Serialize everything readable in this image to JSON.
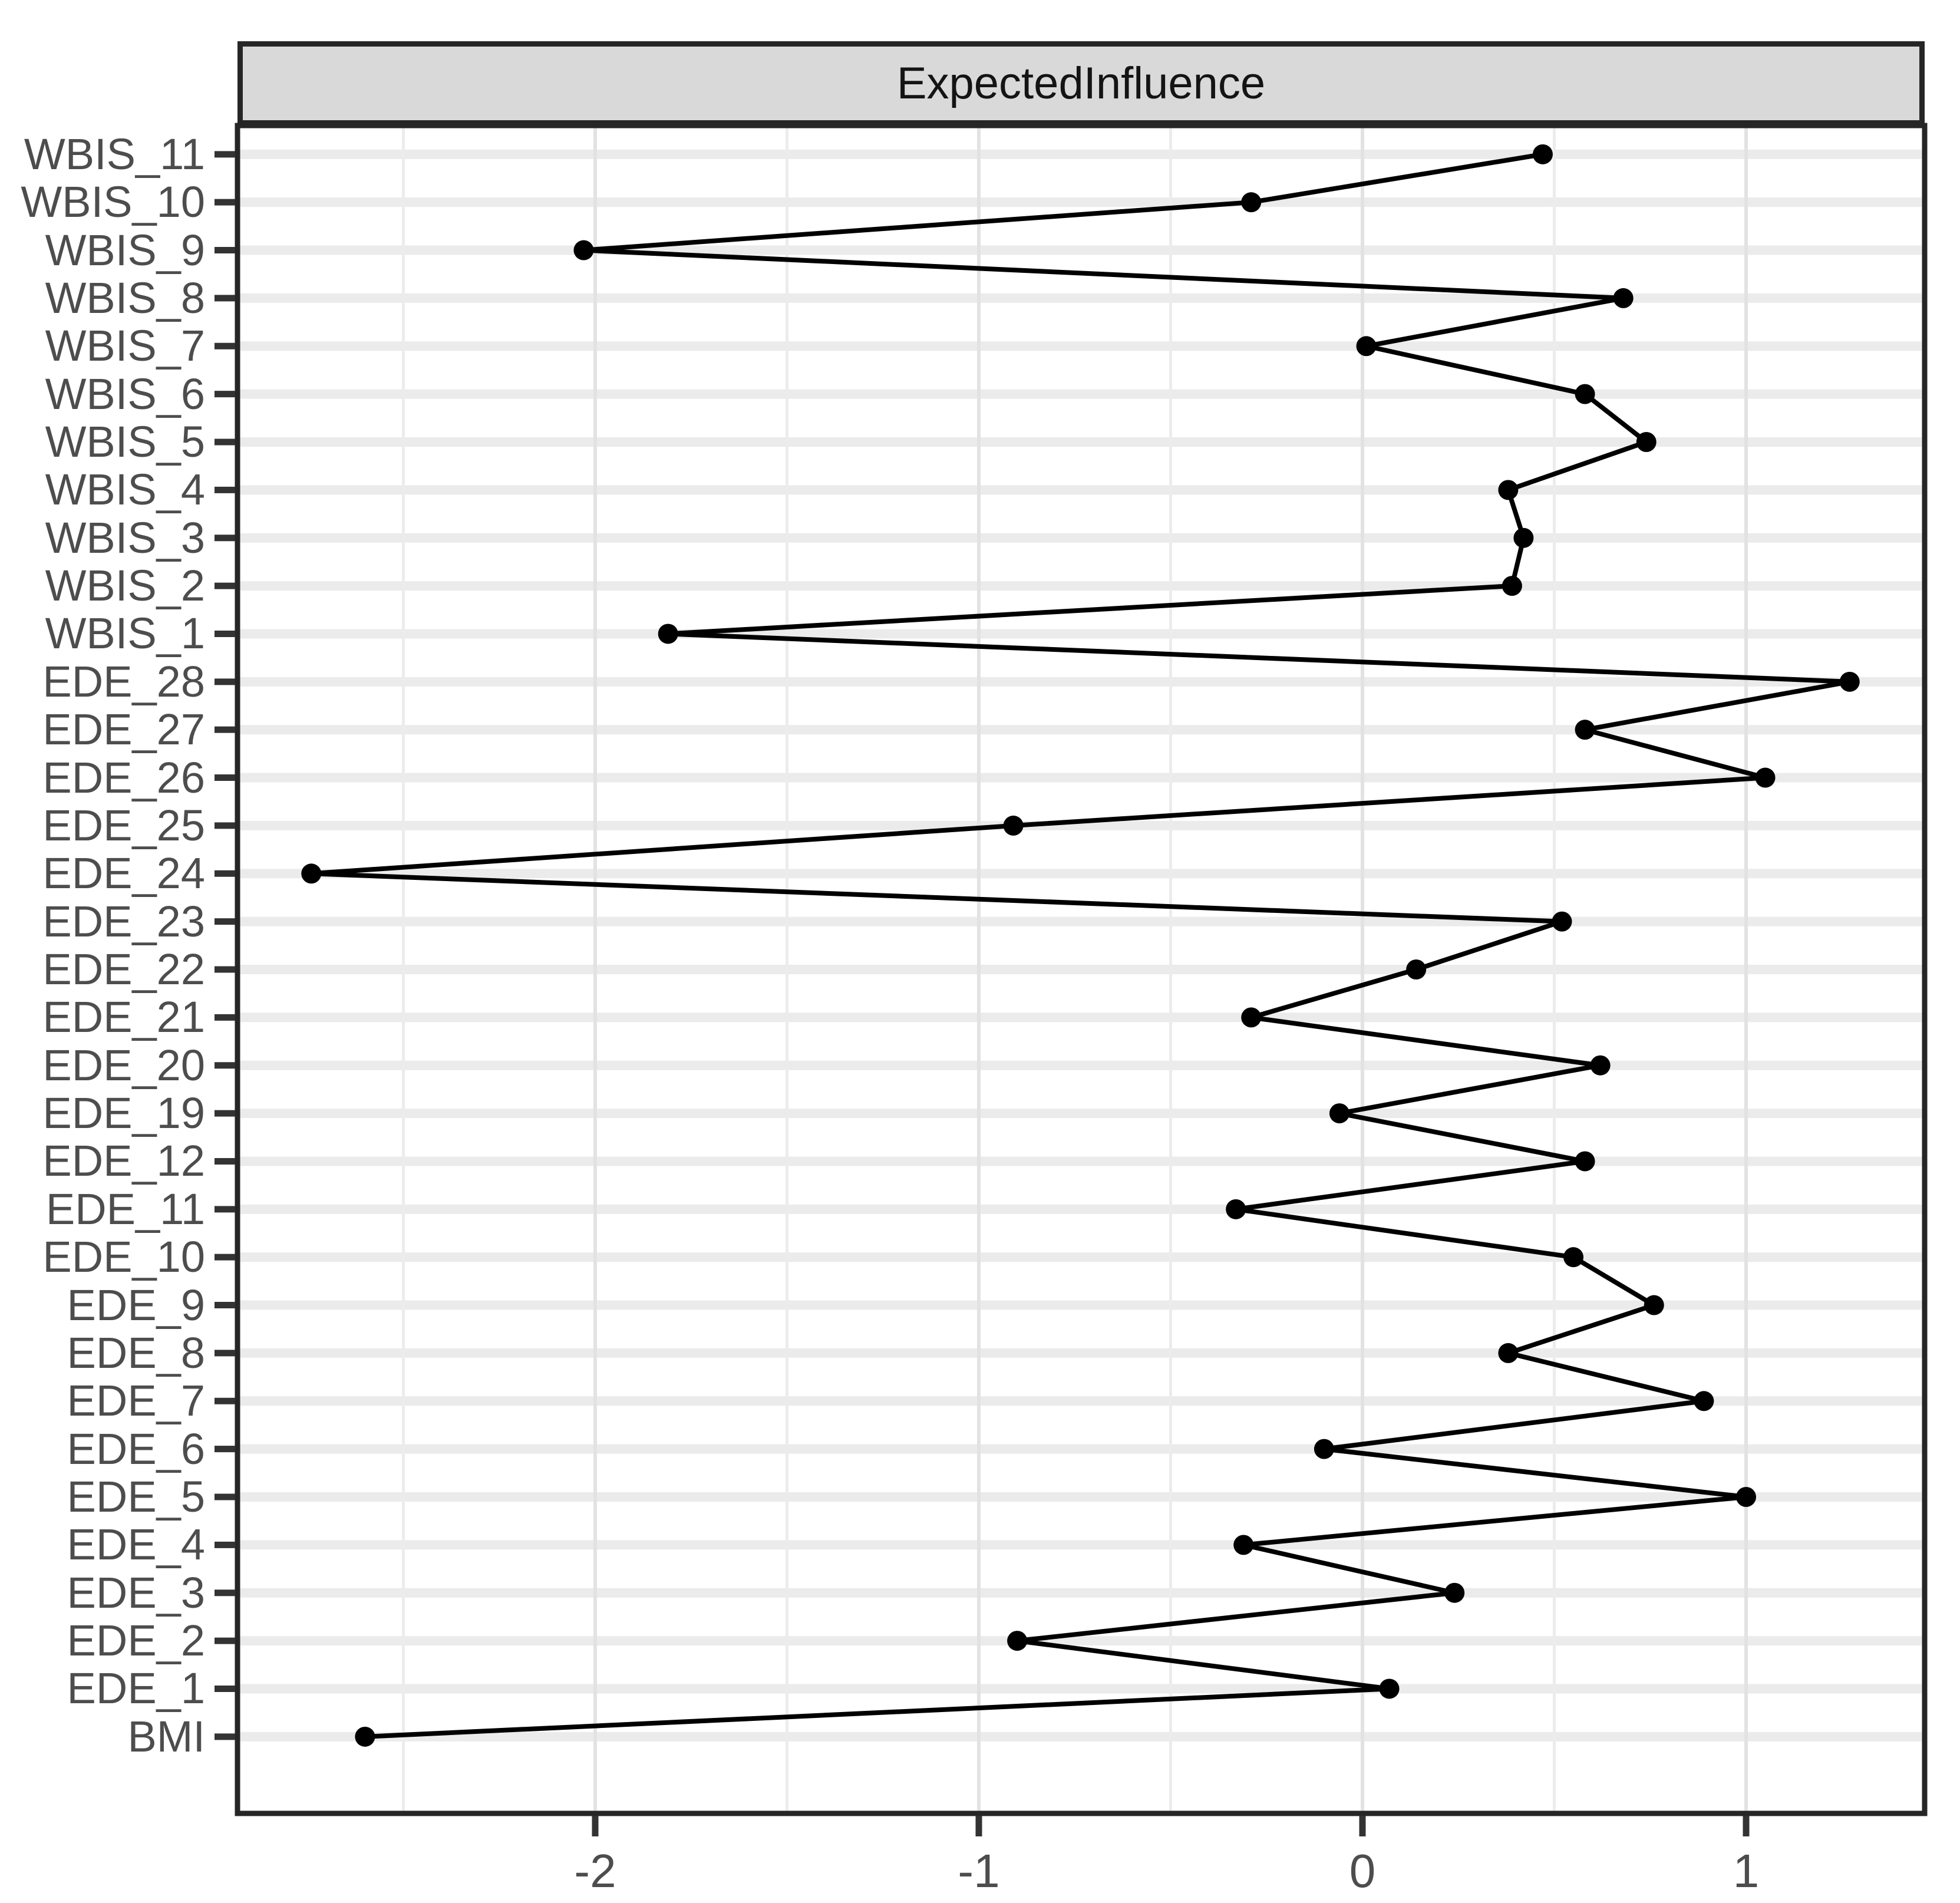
{
  "figure": {
    "strip_title": "ExpectedInfluence"
  },
  "chart_data": {
    "type": "line",
    "subtype": "dot-line centrality profile, categories on y-axis, value on x-axis",
    "title": "ExpectedInfluence",
    "legend": "none",
    "grid": "horizontal light-gray line per category; vertical major gridlines at integer ticks and minor gridlines at half-unit positions",
    "xlabel": "",
    "ylabel": "",
    "x_ticks": [
      -2,
      -1,
      0,
      1
    ],
    "x_tick_labels": [
      "-2",
      "-1",
      "0",
      "1"
    ],
    "x_minor_ticks": [
      -2.5,
      -1.5,
      -0.5,
      0.5
    ],
    "xlim": [
      -2.93,
      1.47
    ],
    "categories_top_to_bottom": [
      "WBIS_11",
      "WBIS_10",
      "WBIS_9",
      "WBIS_8",
      "WBIS_7",
      "WBIS_6",
      "WBIS_5",
      "WBIS_4",
      "WBIS_3",
      "WBIS_2",
      "WBIS_1",
      "EDE_28",
      "EDE_27",
      "EDE_26",
      "EDE_25",
      "EDE_24",
      "EDE_23",
      "EDE_22",
      "EDE_21",
      "EDE_20",
      "EDE_19",
      "EDE_12",
      "EDE_11",
      "EDE_10",
      "EDE_9",
      "EDE_8",
      "EDE_7",
      "EDE_6",
      "EDE_5",
      "EDE_4",
      "EDE_3",
      "EDE_2",
      "EDE_1",
      "BMI"
    ],
    "values": [
      0.47,
      -0.29,
      -2.03,
      0.68,
      0.01,
      0.58,
      0.74,
      0.38,
      0.42,
      0.39,
      -1.81,
      1.27,
      0.58,
      1.05,
      -0.91,
      -2.74,
      0.52,
      0.14,
      -0.29,
      0.62,
      -0.06,
      0.58,
      -0.33,
      0.55,
      0.76,
      0.38,
      0.89,
      -0.1,
      1.0,
      -0.31,
      0.24,
      -0.9,
      0.07,
      -2.6
    ],
    "colors": {
      "line_and_points": "#000000",
      "strip_background": "#d9d9d9",
      "strip_border": "#262626",
      "panel_border": "#262626",
      "horizontal_gridline": "#ebebeb",
      "vertical_major_gridline": "#e2e2e2",
      "vertical_minor_gridline": "#ececec",
      "axis_text": "#4d4d4d",
      "tick_mark": "#333333",
      "background": "#ffffff"
    }
  }
}
